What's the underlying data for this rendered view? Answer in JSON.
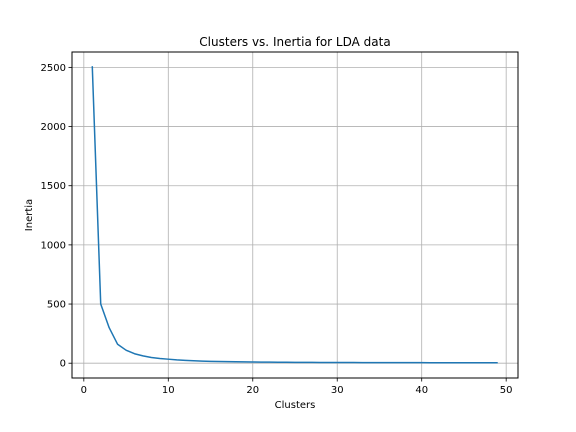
{
  "chart_data": {
    "type": "line",
    "title": "Clusters vs. Inertia for LDA data",
    "xlabel": "Clusters",
    "ylabel": "Inertia",
    "xlim": [
      -1.4,
      51.4
    ],
    "ylim": [
      -125,
      2630
    ],
    "xticks": [
      0,
      10,
      20,
      30,
      40,
      50
    ],
    "yticks": [
      0,
      500,
      1000,
      1500,
      2000,
      2500
    ],
    "grid": true,
    "series": [
      {
        "color": "#1f77b4",
        "x": [
          1,
          2,
          3,
          4,
          5,
          6,
          7,
          8,
          9,
          10,
          11,
          12,
          13,
          14,
          15,
          16,
          17,
          18,
          19,
          20,
          21,
          22,
          23,
          24,
          25,
          26,
          27,
          28,
          29,
          30,
          31,
          32,
          33,
          34,
          35,
          36,
          37,
          38,
          39,
          40,
          41,
          42,
          43,
          44,
          45,
          46,
          47,
          48,
          49
        ],
        "y": [
          2510,
          500,
          300,
          160,
          110,
          80,
          62,
          48,
          40,
          34,
          28,
          24,
          21,
          18,
          16,
          14,
          13,
          12,
          11,
          10,
          9.5,
          9,
          8.5,
          8,
          7.5,
          7,
          6.8,
          6.5,
          6.2,
          6,
          5.8,
          5.6,
          5.4,
          5.2,
          5,
          4.9,
          4.8,
          4.7,
          4.6,
          4.5,
          4.4,
          4.3,
          4.2,
          4.1,
          4,
          3.9,
          3.8,
          3.7,
          3.6
        ]
      }
    ]
  }
}
